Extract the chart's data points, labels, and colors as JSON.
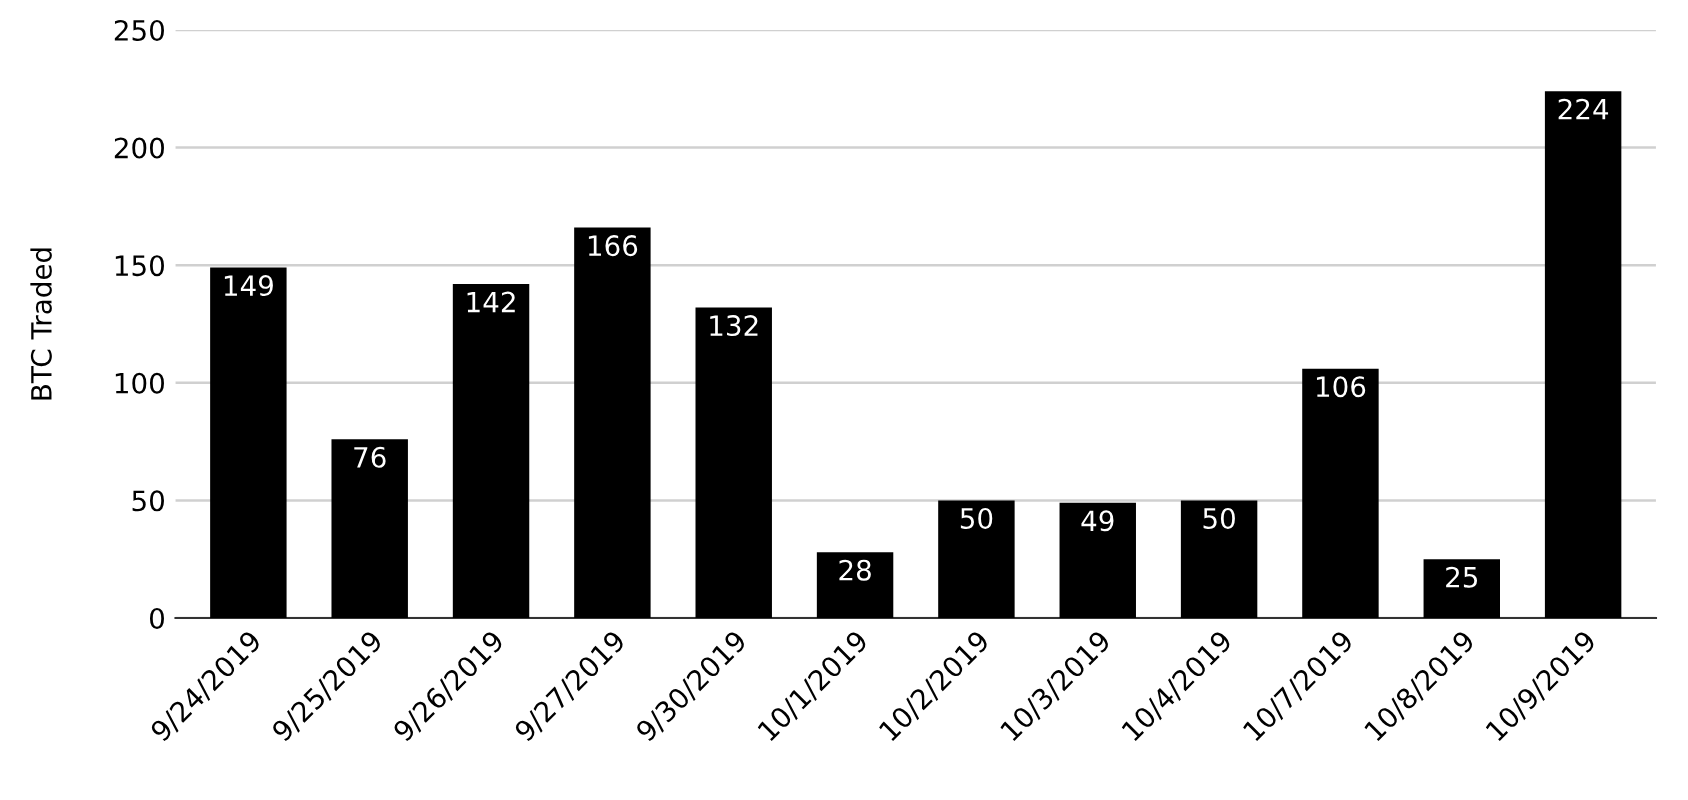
{
  "chart_data": {
    "type": "bar",
    "ylabel": "BTC Traded",
    "categories": [
      "9/24/2019",
      "9/25/2019",
      "9/26/2019",
      "9/27/2019",
      "9/30/2019",
      "10/1/2019",
      "10/2/2019",
      "10/3/2019",
      "10/4/2019",
      "10/7/2019",
      "10/8/2019",
      "10/9/2019"
    ],
    "values": [
      149,
      76,
      142,
      166,
      132,
      28,
      50,
      49,
      50,
      106,
      25,
      224
    ],
    "color": "#000000",
    "ylim": [
      0,
      250
    ],
    "yticks": [
      0,
      50,
      100,
      150,
      200,
      250
    ],
    "grid": "y",
    "data_labels": true
  }
}
